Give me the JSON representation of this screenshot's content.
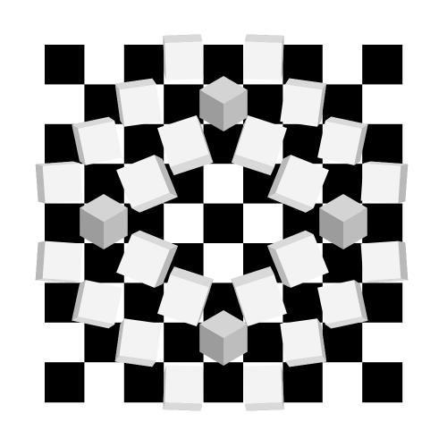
{
  "illusion": {
    "grid_rows": 9,
    "grid_cols": 9,
    "colors": {
      "background": "#ffffff",
      "dark_square": "#000000",
      "light_square": "#ffffff",
      "cube_top": "#f3f3f3",
      "cube_left": "#b9b9b9",
      "cube_right": "#d9d9d9",
      "cube_face_shadow": "#8f8f8f",
      "iso_top": "#d4d4d4",
      "iso_left": "#9c9c9c",
      "iso_right": "#bdbdbd"
    }
  }
}
